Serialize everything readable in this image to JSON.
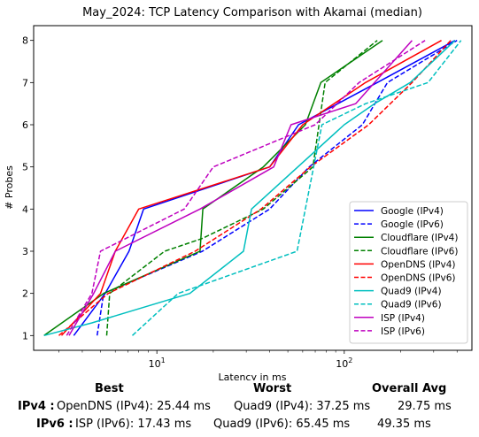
{
  "chart_data": {
    "type": "line",
    "title": "May_2024: TCP Latency Comparison with Akamai (median)",
    "xlabel": "Latency in ms",
    "ylabel": "# Probes",
    "xscale": "log",
    "xlim": [
      2.2,
      480
    ],
    "ylim": [
      0.65,
      8.35
    ],
    "x_ticks": [
      {
        "value": 10,
        "base": "10",
        "exp": "1"
      },
      {
        "value": 100,
        "base": "10",
        "exp": "2"
      }
    ],
    "y_ticks": [
      1,
      2,
      3,
      4,
      5,
      6,
      7,
      8
    ],
    "legend_position": "lower right",
    "grid": false,
    "series": [
      {
        "name": "Google (IPv4)",
        "color": "#0000ff",
        "dash": "solid",
        "points": [
          [
            3.6,
            1
          ],
          [
            5.3,
            2
          ],
          [
            7.1,
            3
          ],
          [
            8.5,
            4
          ],
          [
            40,
            5
          ],
          [
            57,
            6
          ],
          [
            150,
            7
          ],
          [
            390,
            8
          ]
        ]
      },
      {
        "name": "Google (IPv6)",
        "color": "#0000ff",
        "dash": "dashed",
        "points": [
          [
            4.8,
            1
          ],
          [
            5.2,
            2
          ],
          [
            17.5,
            3
          ],
          [
            40,
            4
          ],
          [
            65,
            5
          ],
          [
            125,
            6
          ],
          [
            170,
            7
          ],
          [
            400,
            8
          ]
        ]
      },
      {
        "name": "Cloudflare (IPv4)",
        "color": "#008000",
        "dash": "solid",
        "points": [
          [
            2.5,
            1
          ],
          [
            5.2,
            2
          ],
          [
            17,
            3
          ],
          [
            17.6,
            4
          ],
          [
            37,
            5
          ],
          [
            62,
            6
          ],
          [
            75,
            7
          ],
          [
            160,
            8
          ]
        ]
      },
      {
        "name": "Cloudflare (IPv6)",
        "color": "#008000",
        "dash": "dashed",
        "points": [
          [
            5.4,
            1
          ],
          [
            5.6,
            2
          ],
          [
            11,
            3
          ],
          [
            17.4,
            3.3
          ],
          [
            37,
            4
          ],
          [
            68,
            5
          ],
          [
            79,
            7
          ],
          [
            150,
            8
          ]
        ]
      },
      {
        "name": "OpenDNS (IPv4)",
        "color": "#ff0000",
        "dash": "solid",
        "points": [
          [
            3.1,
            1
          ],
          [
            5.0,
            2
          ],
          [
            6.0,
            3
          ],
          [
            8.0,
            4
          ],
          [
            40,
            5
          ],
          [
            60,
            6
          ],
          [
            130,
            7
          ],
          [
            330,
            8
          ]
        ]
      },
      {
        "name": "OpenDNS (IPv6)",
        "color": "#ff0000",
        "dash": "dashed",
        "points": [
          [
            3.0,
            1
          ],
          [
            5.5,
            2
          ],
          [
            16,
            3
          ],
          [
            36,
            4
          ],
          [
            66,
            5
          ],
          [
            135,
            6
          ],
          [
            230,
            7
          ],
          [
            370,
            8
          ]
        ]
      },
      {
        "name": "Quad9 (IPv4)",
        "color": "#00bfbf",
        "dash": "solid",
        "points": [
          [
            2.5,
            1
          ],
          [
            4.5,
            1.3
          ],
          [
            15,
            2
          ],
          [
            29,
            3
          ],
          [
            32,
            4
          ],
          [
            100,
            6
          ],
          [
            145,
            6.5
          ],
          [
            225,
            7
          ],
          [
            390,
            8
          ]
        ]
      },
      {
        "name": "Quad9 (IPv6)",
        "color": "#00bfbf",
        "dash": "dashed",
        "points": [
          [
            7.4,
            1
          ],
          [
            13,
            2
          ],
          [
            56,
            3
          ],
          [
            76,
            6
          ],
          [
            130,
            6.5
          ],
          [
            280,
            7
          ],
          [
            420,
            8
          ]
        ]
      },
      {
        "name": "ISP (IPv4)",
        "color": "#bf00bf",
        "dash": "solid",
        "points": [
          [
            3.4,
            1
          ],
          [
            4.6,
            2
          ],
          [
            6.0,
            3
          ],
          [
            17,
            4
          ],
          [
            42,
            5
          ],
          [
            52,
            6
          ],
          [
            115,
            6.5
          ],
          [
            230,
            8
          ]
        ]
      },
      {
        "name": "ISP (IPv6)",
        "color": "#bf00bf",
        "dash": "dashed",
        "points": [
          [
            3.3,
            1
          ],
          [
            4.5,
            2
          ],
          [
            5.0,
            3
          ],
          [
            14,
            4
          ],
          [
            20,
            5
          ],
          [
            70,
            6
          ],
          [
            120,
            7
          ],
          [
            270,
            8
          ]
        ]
      }
    ]
  },
  "summary": {
    "headers": {
      "best": "Best",
      "worst": "Worst",
      "avg": "Overall Avg"
    },
    "rows": [
      {
        "label": "IPv4 :",
        "best": "OpenDNS (IPv4): 25.44 ms",
        "worst": "Quad9 (IPv4): 37.25 ms",
        "avg": "29.75 ms"
      },
      {
        "label": "IPv6 :",
        "best": "ISP (IPv6): 17.43 ms",
        "worst": "Quad9 (IPv6): 65.45 ms",
        "avg": "49.35 ms"
      }
    ]
  }
}
